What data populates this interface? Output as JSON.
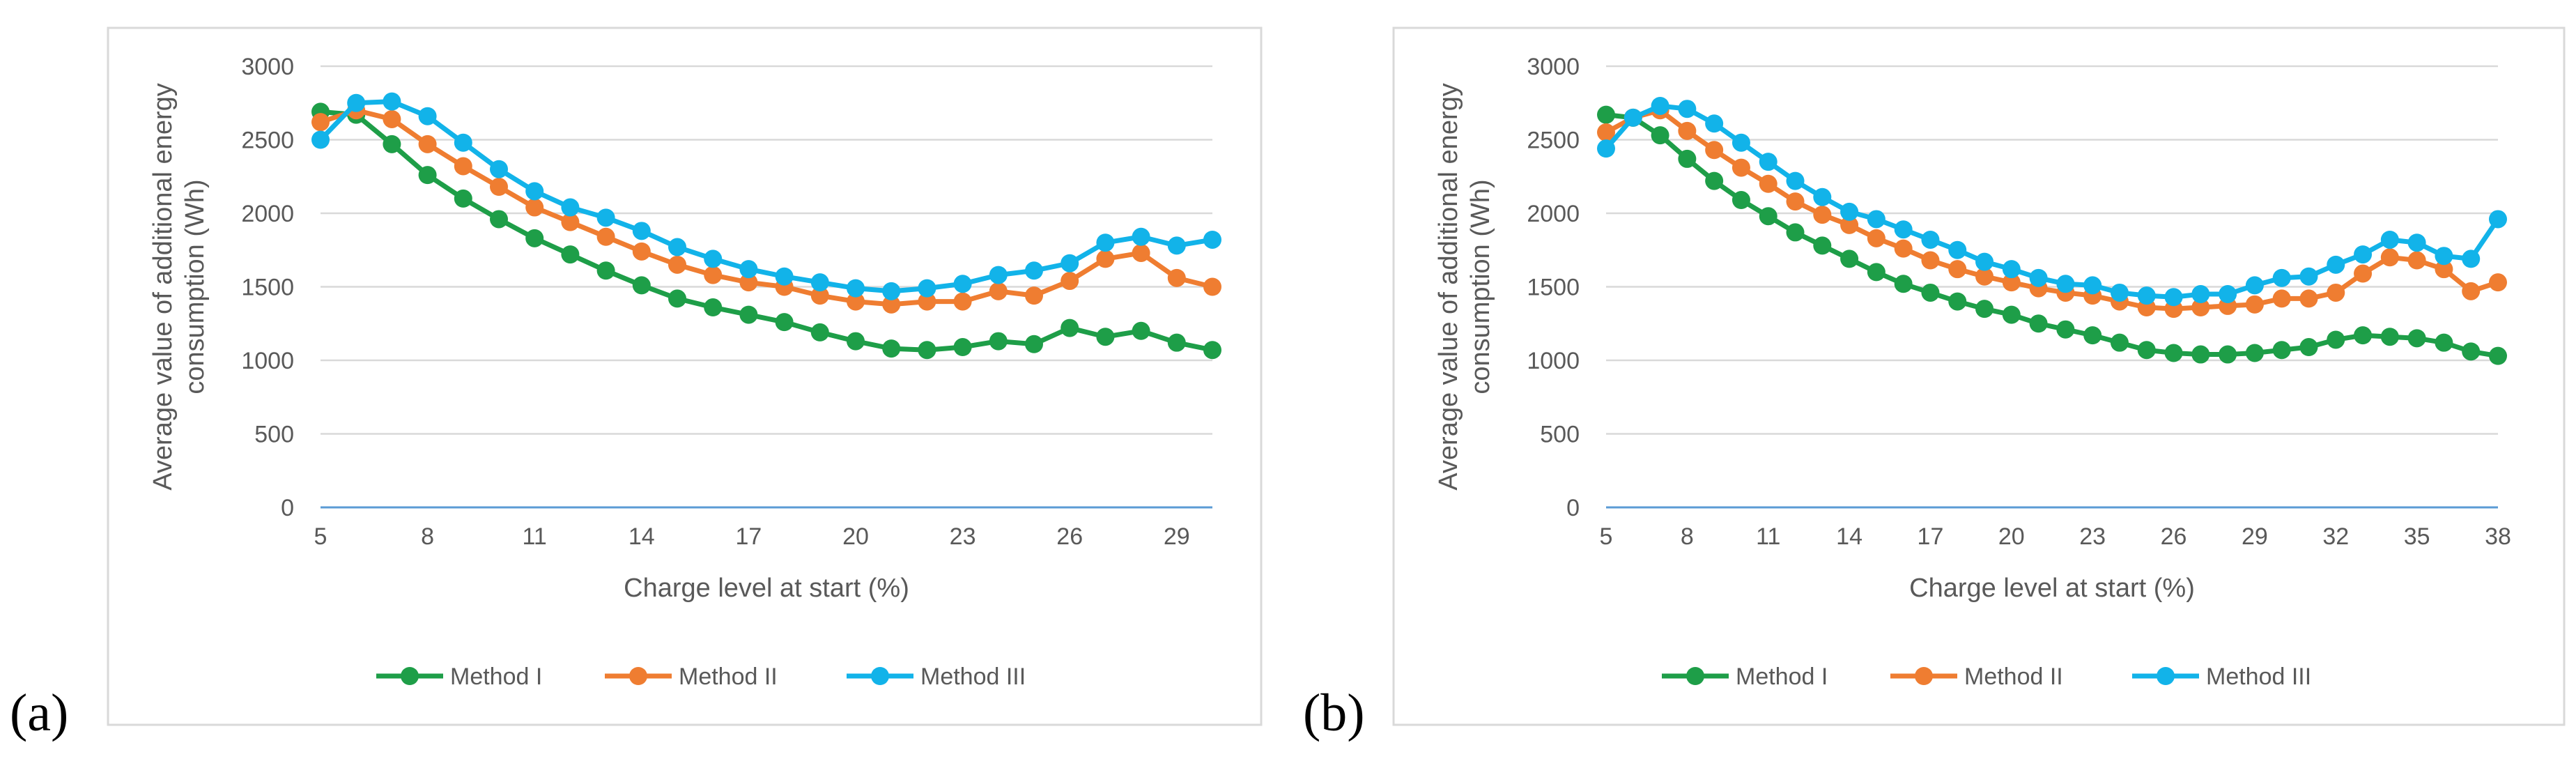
{
  "panel_labels": [
    "(a)",
    "(b)"
  ],
  "colors": {
    "Method I": "#1e9e48",
    "Method II": "#ef7d31",
    "Method III": "#12b3e9",
    "grid": "#d9d9d9",
    "frame": "#d9d9d9",
    "text": "#595959"
  },
  "chart_data": [
    {
      "type": "line",
      "title": "",
      "xlabel": "Charge level at start (%)",
      "ylabel_lines": [
        "Average value of additional energy",
        "consumption (Wh)"
      ],
      "x": [
        5,
        6,
        7,
        8,
        9,
        10,
        11,
        12,
        13,
        14,
        15,
        16,
        17,
        18,
        19,
        20,
        21,
        22,
        23,
        24,
        25,
        26,
        27,
        28,
        29,
        30
      ],
      "xlim": [
        5,
        30
      ],
      "xticks": [
        5,
        8,
        11,
        14,
        17,
        20,
        23,
        26,
        29
      ],
      "ylim": [
        0,
        3000
      ],
      "yticks": [
        0,
        500,
        1000,
        1500,
        2000,
        2500,
        3000
      ],
      "legend_position": "bottom",
      "series": [
        {
          "name": "Method I",
          "values": [
            2690,
            2670,
            2470,
            2260,
            2100,
            1960,
            1830,
            1720,
            1610,
            1510,
            1420,
            1360,
            1310,
            1260,
            1190,
            1130,
            1080,
            1070,
            1090,
            1130,
            1110,
            1220,
            1160,
            1200,
            1120,
            1070
          ]
        },
        {
          "name": "Method II",
          "values": [
            2620,
            2700,
            2640,
            2470,
            2320,
            2180,
            2040,
            1940,
            1840,
            1740,
            1650,
            1580,
            1530,
            1500,
            1440,
            1400,
            1380,
            1400,
            1400,
            1470,
            1440,
            1540,
            1690,
            1730,
            1560,
            1500
          ]
        },
        {
          "name": "Method III",
          "values": [
            2500,
            2750,
            2760,
            2660,
            2480,
            2300,
            2150,
            2040,
            1970,
            1880,
            1770,
            1690,
            1620,
            1570,
            1530,
            1490,
            1470,
            1490,
            1520,
            1580,
            1610,
            1660,
            1800,
            1840,
            1780,
            1820
          ]
        }
      ]
    },
    {
      "type": "line",
      "title": "",
      "xlabel": "Charge level at start (%)",
      "ylabel_lines": [
        "Average value of additional energy",
        "consumption (Wh)"
      ],
      "x": [
        5,
        6,
        7,
        8,
        9,
        10,
        11,
        12,
        13,
        14,
        15,
        16,
        17,
        18,
        19,
        20,
        21,
        22,
        23,
        24,
        25,
        26,
        27,
        28,
        29,
        30,
        31,
        32,
        33,
        34,
        35,
        36,
        37,
        38
      ],
      "xlim": [
        5,
        38
      ],
      "xticks": [
        5,
        8,
        11,
        14,
        17,
        20,
        23,
        26,
        29,
        32,
        35,
        38
      ],
      "ylim": [
        0,
        3000
      ],
      "yticks": [
        0,
        500,
        1000,
        1500,
        2000,
        2500,
        3000
      ],
      "legend_position": "bottom",
      "series": [
        {
          "name": "Method I",
          "values": [
            2670,
            2650,
            2530,
            2370,
            2220,
            2090,
            1980,
            1870,
            1780,
            1690,
            1600,
            1520,
            1460,
            1400,
            1350,
            1310,
            1250,
            1210,
            1170,
            1120,
            1070,
            1050,
            1040,
            1040,
            1050,
            1070,
            1090,
            1140,
            1170,
            1160,
            1150,
            1120,
            1060,
            1030
          ]
        },
        {
          "name": "Method II",
          "values": [
            2550,
            2650,
            2700,
            2560,
            2430,
            2310,
            2200,
            2080,
            1990,
            1920,
            1830,
            1760,
            1680,
            1620,
            1570,
            1530,
            1490,
            1460,
            1440,
            1400,
            1360,
            1350,
            1360,
            1370,
            1380,
            1420,
            1420,
            1460,
            1590,
            1700,
            1680,
            1620,
            1470,
            1530
          ]
        },
        {
          "name": "Method III",
          "values": [
            2440,
            2650,
            2730,
            2710,
            2610,
            2480,
            2350,
            2220,
            2110,
            2010,
            1960,
            1890,
            1820,
            1750,
            1670,
            1620,
            1560,
            1520,
            1510,
            1460,
            1440,
            1430,
            1450,
            1450,
            1510,
            1560,
            1570,
            1650,
            1720,
            1820,
            1800,
            1710,
            1690,
            1960
          ]
        }
      ]
    }
  ]
}
